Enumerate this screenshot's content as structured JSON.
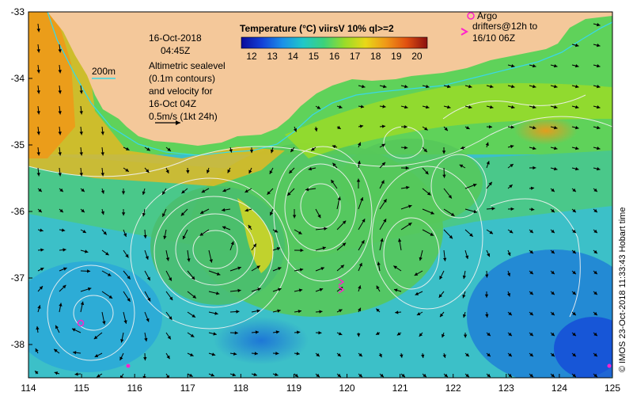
{
  "map": {
    "date": "16-Oct-2018",
    "time": "04:45Z",
    "extent": {
      "lon": [
        114,
        125
      ],
      "lat": [
        -38.5,
        -33
      ]
    },
    "lon_ticks": [
      "114",
      "115",
      "116",
      "117",
      "118",
      "119",
      "120",
      "121",
      "122",
      "123",
      "124",
      "125"
    ],
    "lat_ticks": [
      "-33",
      "-34",
      "-35",
      "-36",
      "-37",
      "-38"
    ],
    "colorbar": {
      "title": "Temperature (°C) viirsV 10% ql>=2",
      "ticks": [
        "12",
        "13",
        "14",
        "15",
        "16",
        "17",
        "18",
        "19",
        "20"
      ],
      "range": [
        11.5,
        20.5
      ],
      "colors": [
        "#0a0a9a",
        "#1240d8",
        "#1a90e8",
        "#20c8c8",
        "#3cd27a",
        "#9adc28",
        "#e8d818",
        "#f09818",
        "#e05010",
        "#8a1010"
      ]
    },
    "depth_label": "200m",
    "legend_lines": [
      "Altimetric sealevel",
      "(0.1m contours)",
      "and velocity for",
      "16-Oct 04Z",
      "0.5m/s (1kt 24h)"
    ],
    "argo_label": "Argo",
    "drifters_lines": [
      "drifters@12h to",
      "16/10 06Z"
    ],
    "credit": "© IMOS 23-Oct-2018 11:33:43 Hobart time",
    "land_color": "#f4c89a",
    "argo_color": "#ff22cc",
    "isobath_color": "#3ad7e6"
  }
}
